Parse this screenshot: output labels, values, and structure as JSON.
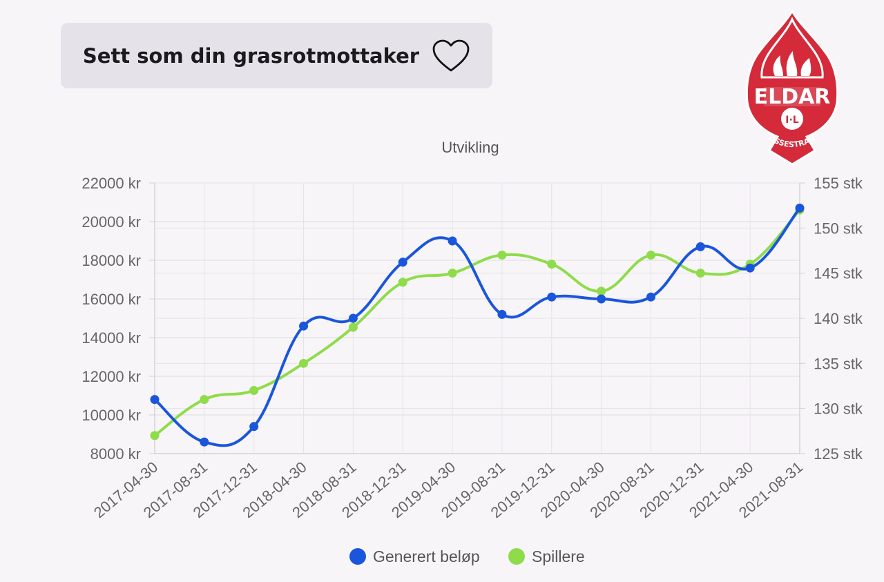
{
  "grasrot_button": {
    "label": "Sett som din grasrotmottaker",
    "icon": "heart-outline-icon"
  },
  "club_logo": {
    "icon": "eldar-il-club-crest",
    "name_text": "ELDAR",
    "sub_text": "I·L",
    "place_text": "VOSSESTRAND",
    "colors": {
      "red": "#d42a3a",
      "white": "#ffffff"
    }
  },
  "chart_data": {
    "type": "line",
    "title": "Utvikling",
    "x": [
      "2017-04-30",
      "2017-08-31",
      "2017-12-31",
      "2018-04-30",
      "2018-08-31",
      "2018-12-31",
      "2019-04-30",
      "2019-08-31",
      "2019-12-31",
      "2020-04-30",
      "2020-08-31",
      "2020-12-31",
      "2021-04-30",
      "2021-08-31"
    ],
    "y_left": {
      "min": 8000,
      "max": 22000,
      "step": 2000,
      "unit": "kr",
      "ticks": [
        "8000 kr",
        "10000 kr",
        "12000 kr",
        "14000 kr",
        "16000 kr",
        "18000 kr",
        "20000 kr",
        "22000 kr"
      ]
    },
    "y_right": {
      "min": 125,
      "max": 155,
      "step": 5,
      "unit": "stk",
      "ticks": [
        "125 stk",
        "130 stk",
        "135 stk",
        "140 stk",
        "145 stk",
        "150 stk",
        "155 stk"
      ]
    },
    "series": [
      {
        "name": "Generert beløp",
        "axis": "left",
        "color": "#1a56db",
        "values": [
          10800,
          8600,
          9400,
          14600,
          15000,
          17900,
          19000,
          15200,
          16100,
          16000,
          16100,
          18700,
          17600,
          20700
        ]
      },
      {
        "name": "Spillere",
        "axis": "right",
        "color": "#8fdc4a",
        "values": [
          127,
          131,
          132,
          135,
          139,
          144,
          145,
          147,
          146,
          143,
          147,
          145,
          146,
          152
        ]
      }
    ],
    "grid": true,
    "legend_position": "bottom"
  }
}
